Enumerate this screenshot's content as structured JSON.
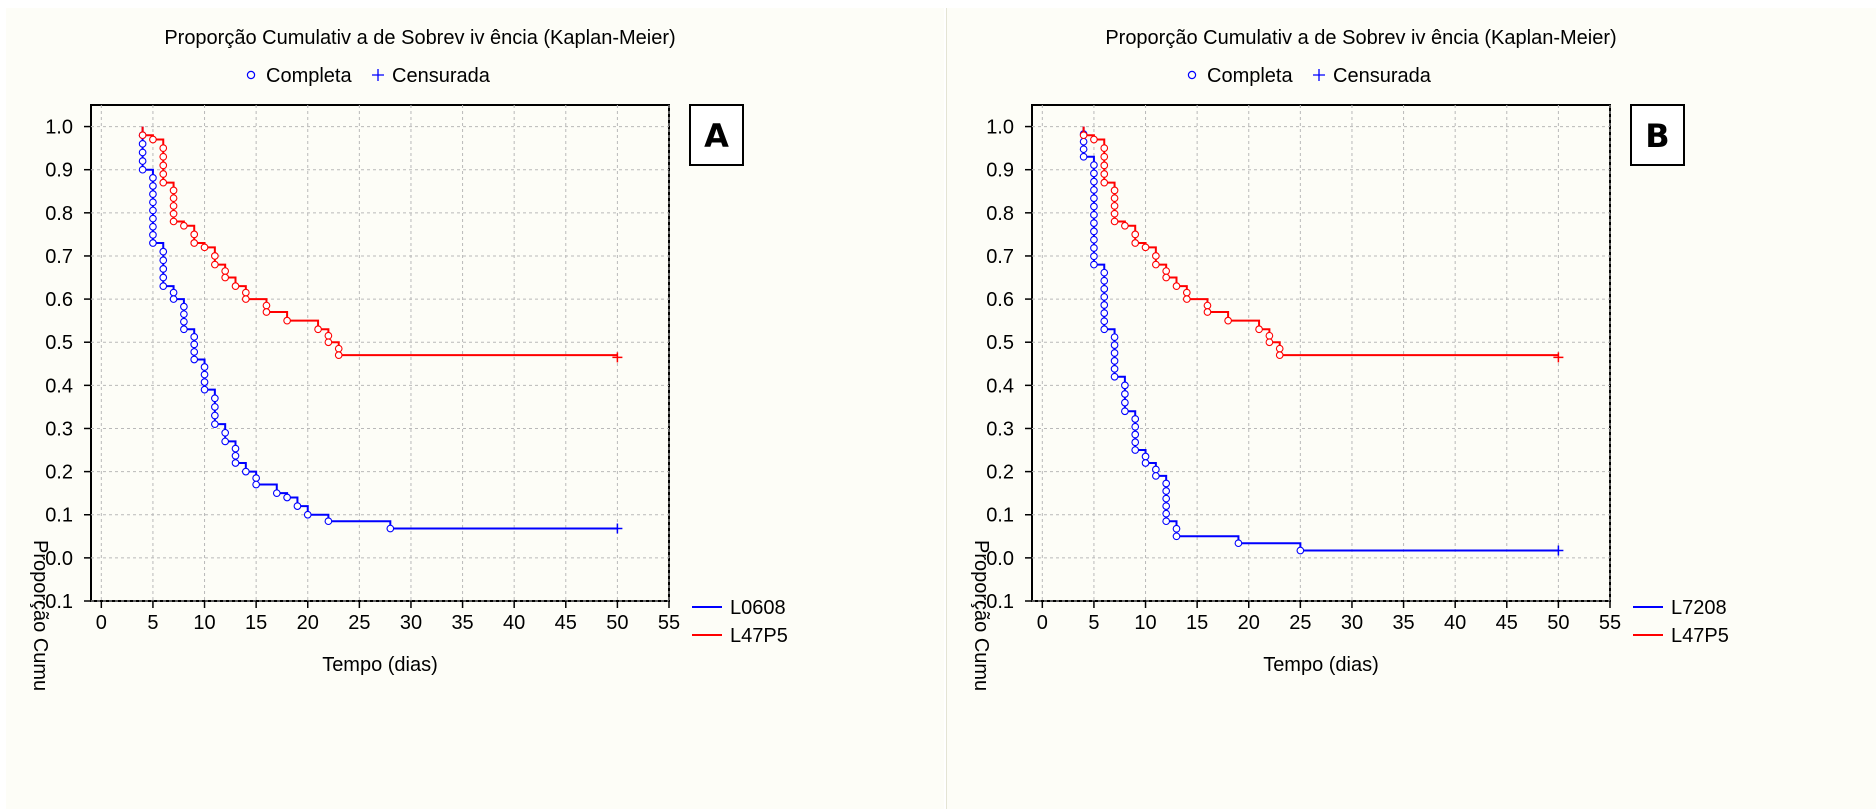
{
  "chart_data": [
    {
      "type": "line",
      "panel_label": "A",
      "title": "Proporção Cumulativ a de Sobrev iv ência (Kaplan-Meier)",
      "marker_legend": {
        "complete": "Completa",
        "censored": "Censurada"
      },
      "xlabel": "Tempo (dias)",
      "ylabel": "Proporção Cumu",
      "xlim": [
        -1,
        55
      ],
      "ylim": [
        -0.1,
        1.05
      ],
      "xticks": [
        "0",
        "5",
        "10",
        "15",
        "20",
        "25",
        "30",
        "35",
        "40",
        "45",
        "50",
        "55"
      ],
      "yticks": [
        "-0.1",
        "0.0",
        "0.1",
        "0.2",
        "0.3",
        "0.4",
        "0.5",
        "0.6",
        "0.7",
        "0.8",
        "0.9",
        "1.0"
      ],
      "grid": true,
      "legend_position": "bottom-right",
      "series": [
        {
          "name": "L0608",
          "color": "#0000ff",
          "steps": [
            [
              4,
              1.0
            ],
            [
              4,
              0.9
            ],
            [
              5,
              0.73
            ],
            [
              6,
              0.63
            ],
            [
              7,
              0.6
            ],
            [
              8,
              0.53
            ],
            [
              9,
              0.46
            ],
            [
              10,
              0.39
            ],
            [
              11,
              0.31
            ],
            [
              12,
              0.27
            ],
            [
              13,
              0.22
            ],
            [
              14,
              0.2
            ],
            [
              15,
              0.17
            ],
            [
              17,
              0.15
            ],
            [
              18,
              0.14
            ],
            [
              19,
              0.12
            ],
            [
              20,
              0.1
            ],
            [
              22,
              0.085
            ],
            [
              28,
              0.068
            ]
          ],
          "end": 50,
          "censored": [
            [
              50,
              0.068
            ]
          ]
        },
        {
          "name": "L47P5",
          "color": "#ff0000",
          "steps": [
            [
              4,
              1.0
            ],
            [
              4,
              0.98
            ],
            [
              5,
              0.97
            ],
            [
              6,
              0.87
            ],
            [
              7,
              0.78
            ],
            [
              8,
              0.77
            ],
            [
              9,
              0.73
            ],
            [
              10,
              0.72
            ],
            [
              11,
              0.68
            ],
            [
              12,
              0.65
            ],
            [
              13,
              0.63
            ],
            [
              14,
              0.6
            ],
            [
              16,
              0.57
            ],
            [
              18,
              0.55
            ],
            [
              21,
              0.53
            ],
            [
              22,
              0.5
            ],
            [
              23,
              0.47
            ]
          ],
          "end": 50,
          "censored": [
            [
              50,
              0.465
            ]
          ]
        }
      ]
    },
    {
      "type": "line",
      "panel_label": "B",
      "title": "Proporção Cumulativ a de Sobrev iv ência (Kaplan-Meier)",
      "marker_legend": {
        "complete": "Completa",
        "censored": "Censurada"
      },
      "xlabel": "Tempo (dias)",
      "ylabel": "Proporção Cumu",
      "xlim": [
        -1,
        55
      ],
      "ylim": [
        -0.1,
        1.05
      ],
      "xticks": [
        "0",
        "5",
        "10",
        "15",
        "20",
        "25",
        "30",
        "35",
        "40",
        "45",
        "50",
        "55"
      ],
      "yticks": [
        "-0.1",
        "0.0",
        "0.1",
        "0.2",
        "0.3",
        "0.4",
        "0.5",
        "0.6",
        "0.7",
        "0.8",
        "0.9",
        "1.0"
      ],
      "grid": true,
      "legend_position": "bottom-right",
      "series": [
        {
          "name": "L7208",
          "color": "#0000ff",
          "steps": [
            [
              4,
              1.0
            ],
            [
              4,
              0.93
            ],
            [
              5,
              0.68
            ],
            [
              6,
              0.53
            ],
            [
              7,
              0.42
            ],
            [
              8,
              0.34
            ],
            [
              9,
              0.25
            ],
            [
              10,
              0.22
            ],
            [
              11,
              0.19
            ],
            [
              12,
              0.085
            ],
            [
              13,
              0.05
            ],
            [
              19,
              0.034
            ],
            [
              25,
              0.017
            ]
          ],
          "end": 50,
          "censored": [
            [
              50,
              0.017
            ]
          ]
        },
        {
          "name": "L47P5",
          "color": "#ff0000",
          "steps": [
            [
              4,
              1.0
            ],
            [
              4,
              0.98
            ],
            [
              5,
              0.97
            ],
            [
              6,
              0.87
            ],
            [
              7,
              0.78
            ],
            [
              8,
              0.77
            ],
            [
              9,
              0.73
            ],
            [
              10,
              0.72
            ],
            [
              11,
              0.68
            ],
            [
              12,
              0.65
            ],
            [
              13,
              0.63
            ],
            [
              14,
              0.6
            ],
            [
              16,
              0.57
            ],
            [
              18,
              0.55
            ],
            [
              21,
              0.53
            ],
            [
              22,
              0.5
            ],
            [
              23,
              0.47
            ]
          ],
          "end": 50,
          "censored": [
            [
              50,
              0.465
            ]
          ]
        }
      ]
    }
  ]
}
